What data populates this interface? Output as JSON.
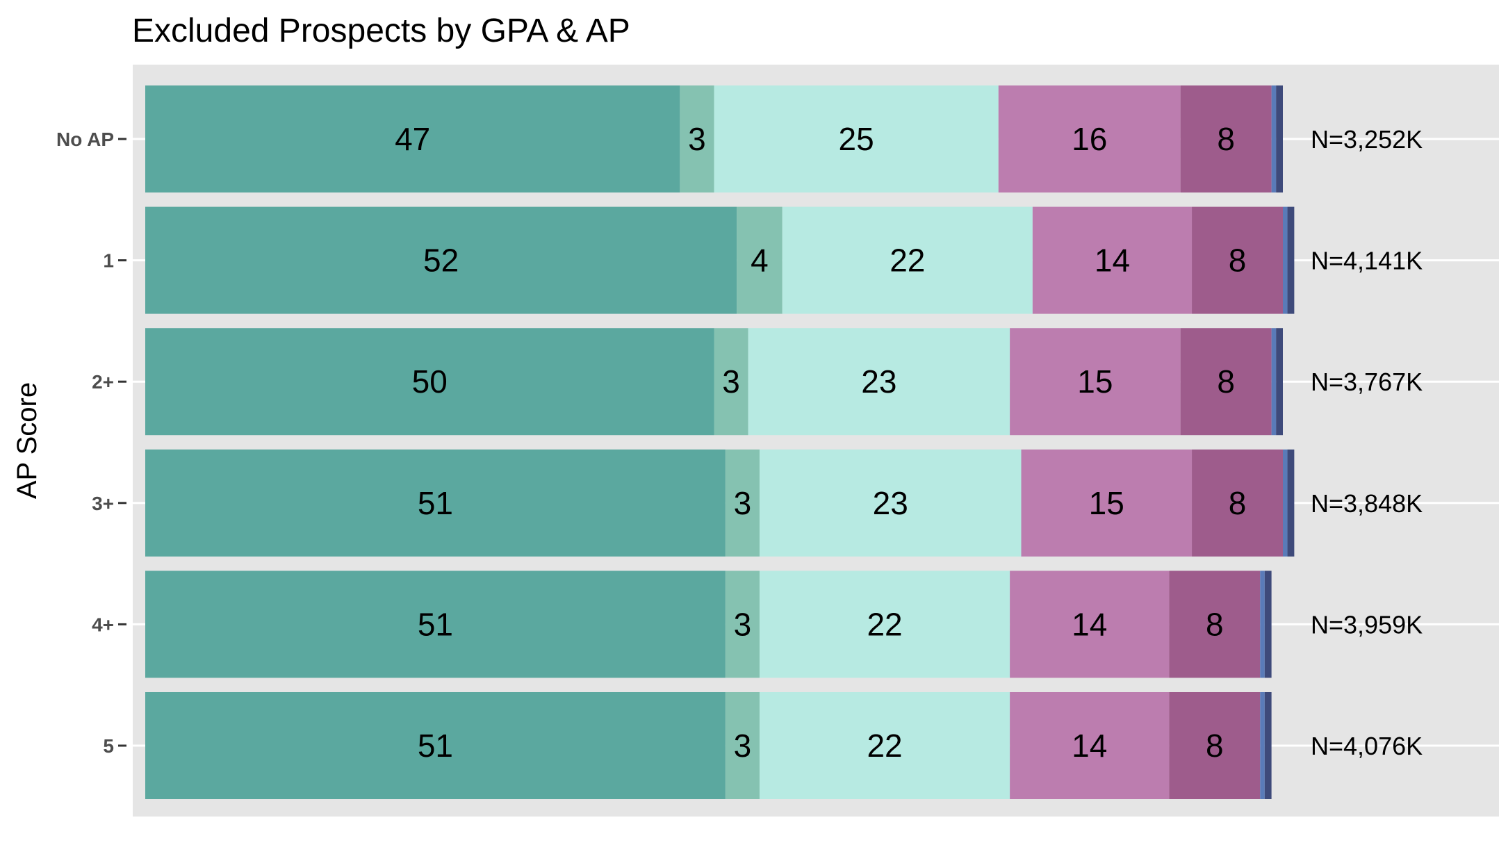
{
  "chart_data": {
    "type": "bar",
    "orientation": "horizontal",
    "stacked": true,
    "title": "Excluded Prospects by GPA & AP",
    "ylabel": "AP Score",
    "xlabel": "",
    "categories": [
      "No AP",
      "1",
      "2+",
      "3+",
      "4+",
      "5"
    ],
    "series": [
      {
        "color": "#5ba89f",
        "values": [
          47,
          52,
          50,
          51,
          51,
          51
        ]
      },
      {
        "color": "#85c2b1",
        "values": [
          3,
          4,
          3,
          3,
          3,
          3
        ]
      },
      {
        "color": "#b7eae2",
        "values": [
          25,
          22,
          23,
          23,
          22,
          22
        ]
      },
      {
        "color": "#bc7daf",
        "values": [
          16,
          14,
          15,
          15,
          14,
          14
        ]
      },
      {
        "color": "#9e5c8c",
        "values": [
          8,
          8,
          8,
          8,
          8,
          8
        ]
      },
      {
        "color": "#5a7bb8",
        "values": [
          0.4,
          0.4,
          0.4,
          0.4,
          0.4,
          0.4
        ]
      },
      {
        "color": "#3e4a7a",
        "values": [
          0.6,
          0.6,
          0.6,
          0.6,
          0.6,
          0.6
        ]
      }
    ],
    "n_labels": [
      "N=3,252K",
      "N=4,141K",
      "N=3,767K",
      "N=3,848K",
      "N=3,959K",
      "N=4,076K"
    ],
    "xlim": [
      0,
      100
    ],
    "grid": true,
    "legend": "none",
    "panel_color": "#e5e5e5",
    "grid_color": "#ffffff"
  }
}
